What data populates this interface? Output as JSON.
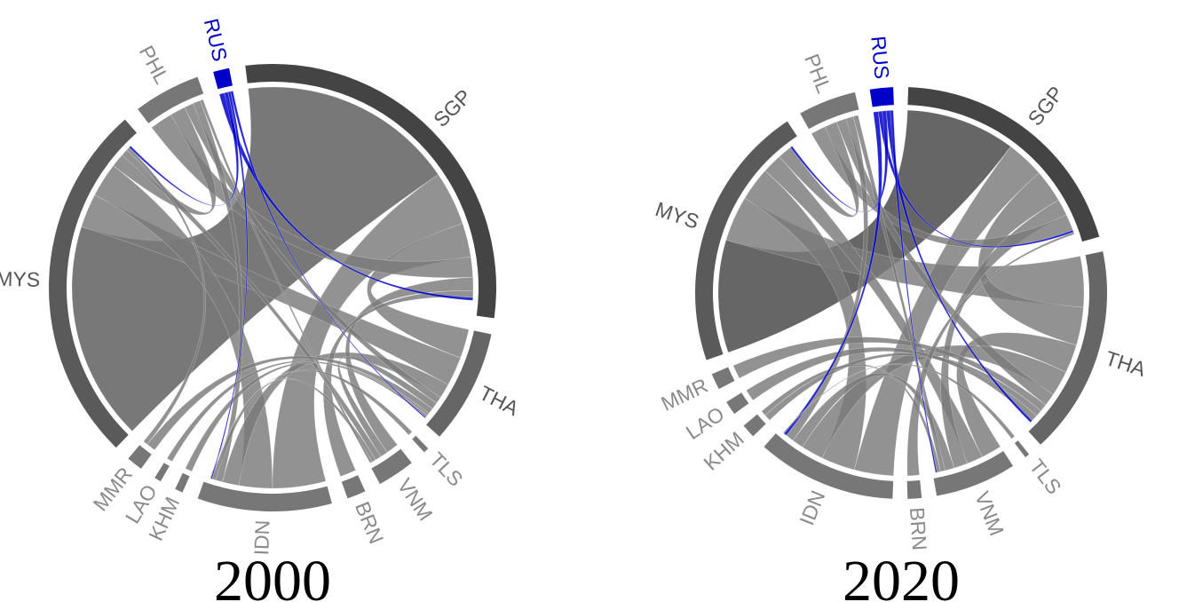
{
  "colors": {
    "highlight": "#0000c8",
    "sgp": "#444444",
    "mys": "#5a5a5a",
    "tha": "#666666",
    "regular": "#777777",
    "label_dark": "#555555",
    "label_light": "#8a8a8a",
    "background": "#ffffff"
  },
  "chart_data": [
    {
      "type": "chord",
      "title": "2000",
      "highlight": "RUS",
      "sectors": [
        {
          "name": "SGP",
          "share": 0.3
        },
        {
          "name": "THA",
          "share": 0.085
        },
        {
          "name": "TLS",
          "share": 0.004
        },
        {
          "name": "VNM",
          "share": 0.028
        },
        {
          "name": "BRN",
          "share": 0.014
        },
        {
          "name": "IDN",
          "share": 0.1
        },
        {
          "name": "KHM",
          "share": 0.006
        },
        {
          "name": "LAO",
          "share": 0.005
        },
        {
          "name": "MMR",
          "share": 0.012
        },
        {
          "name": "MYS",
          "share": 0.27
        },
        {
          "name": "PHL",
          "share": 0.05
        },
        {
          "name": "RUS",
          "share": 0.012
        }
      ],
      "flows": [
        {
          "from": "SGP",
          "to": "MYS",
          "value": 0.32
        },
        {
          "from": "SGP",
          "to": "THA",
          "value": 0.05
        },
        {
          "from": "SGP",
          "to": "IDN",
          "value": 0.08
        },
        {
          "from": "SGP",
          "to": "PHL",
          "value": 0.03
        },
        {
          "from": "SGP",
          "to": "VNM",
          "value": 0.02
        },
        {
          "from": "SGP",
          "to": "BRN",
          "value": 0.01
        },
        {
          "from": "MYS",
          "to": "THA",
          "value": 0.05
        },
        {
          "from": "MYS",
          "to": "IDN",
          "value": 0.05
        },
        {
          "from": "MYS",
          "to": "PHL",
          "value": 0.02
        },
        {
          "from": "MYS",
          "to": "VNM",
          "value": 0.01
        },
        {
          "from": "MYS",
          "to": "MMR",
          "value": 0.005
        },
        {
          "from": "THA",
          "to": "IDN",
          "value": 0.025
        },
        {
          "from": "THA",
          "to": "PHL",
          "value": 0.012
        },
        {
          "from": "THA",
          "to": "VNM",
          "value": 0.012
        },
        {
          "from": "THA",
          "to": "MMR",
          "value": 0.01
        },
        {
          "from": "THA",
          "to": "KHM",
          "value": 0.004
        },
        {
          "from": "THA",
          "to": "LAO",
          "value": 0.004
        },
        {
          "from": "IDN",
          "to": "PHL",
          "value": 0.01
        },
        {
          "from": "IDN",
          "to": "VNM",
          "value": 0.006
        },
        {
          "from": "PHL",
          "to": "VNM",
          "value": 0.004
        },
        {
          "from": "RUS",
          "to": "IDN",
          "value": 0.002
        },
        {
          "from": "RUS",
          "to": "SGP",
          "value": 0.004
        },
        {
          "from": "RUS",
          "to": "MYS",
          "value": 0.003
        },
        {
          "from": "RUS",
          "to": "THA",
          "value": 0.002
        },
        {
          "from": "TLS",
          "to": "IDN",
          "value": 0.001
        }
      ]
    },
    {
      "type": "chord",
      "title": "2020",
      "highlight": "RUS",
      "sectors": [
        {
          "name": "SGP",
          "share": 0.22
        },
        {
          "name": "THA",
          "share": 0.18
        },
        {
          "name": "TLS",
          "share": 0.004
        },
        {
          "name": "VNM",
          "share": 0.07
        },
        {
          "name": "BRN",
          "share": 0.012
        },
        {
          "name": "IDN",
          "share": 0.12
        },
        {
          "name": "KHM",
          "share": 0.012
        },
        {
          "name": "LAO",
          "share": 0.012
        },
        {
          "name": "MMR",
          "share": 0.014
        },
        {
          "name": "MYS",
          "share": 0.23
        },
        {
          "name": "PHL",
          "share": 0.05
        },
        {
          "name": "RUS",
          "share": 0.02
        }
      ],
      "flows": [
        {
          "from": "SGP",
          "to": "MYS",
          "value": 0.2
        },
        {
          "from": "SGP",
          "to": "THA",
          "value": 0.06
        },
        {
          "from": "SGP",
          "to": "IDN",
          "value": 0.07
        },
        {
          "from": "SGP",
          "to": "VNM",
          "value": 0.03
        },
        {
          "from": "SGP",
          "to": "PHL",
          "value": 0.03
        },
        {
          "from": "MYS",
          "to": "THA",
          "value": 0.08
        },
        {
          "from": "MYS",
          "to": "IDN",
          "value": 0.06
        },
        {
          "from": "MYS",
          "to": "VNM",
          "value": 0.035
        },
        {
          "from": "MYS",
          "to": "PHL",
          "value": 0.025
        },
        {
          "from": "THA",
          "to": "VNM",
          "value": 0.045
        },
        {
          "from": "THA",
          "to": "IDN",
          "value": 0.04
        },
        {
          "from": "THA",
          "to": "PHL",
          "value": 0.02
        },
        {
          "from": "THA",
          "to": "KHM",
          "value": 0.01
        },
        {
          "from": "THA",
          "to": "LAO",
          "value": 0.01
        },
        {
          "from": "THA",
          "to": "MMR",
          "value": 0.012
        },
        {
          "from": "IDN",
          "to": "VNM",
          "value": 0.02
        },
        {
          "from": "IDN",
          "to": "PHL",
          "value": 0.015
        },
        {
          "from": "VNM",
          "to": "KHM",
          "value": 0.008
        },
        {
          "from": "VNM",
          "to": "PHL",
          "value": 0.01
        },
        {
          "from": "RUS",
          "to": "IDN",
          "value": 0.005
        },
        {
          "from": "RUS",
          "to": "SGP",
          "value": 0.004
        },
        {
          "from": "RUS",
          "to": "MYS",
          "value": 0.004
        },
        {
          "from": "RUS",
          "to": "THA",
          "value": 0.004
        },
        {
          "from": "RUS",
          "to": "VNM",
          "value": 0.003
        },
        {
          "from": "BRN",
          "to": "SGP",
          "value": 0.004
        },
        {
          "from": "TLS",
          "to": "IDN",
          "value": 0.002
        }
      ]
    }
  ]
}
